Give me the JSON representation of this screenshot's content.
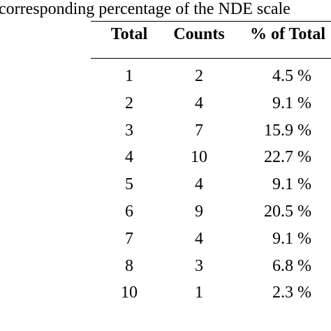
{
  "caption": "corresponding percentage of the NDE scale",
  "table": {
    "headers": [
      "Total",
      "Counts",
      "% of Total"
    ],
    "rows": [
      {
        "total": "1",
        "counts": "2",
        "percent": "4.5 %"
      },
      {
        "total": "2",
        "counts": "4",
        "percent": "9.1 %"
      },
      {
        "total": "3",
        "counts": "7",
        "percent": "15.9 %"
      },
      {
        "total": "4",
        "counts": "10",
        "percent": "22.7 %"
      },
      {
        "total": "5",
        "counts": "4",
        "percent": "9.1 %"
      },
      {
        "total": "6",
        "counts": "9",
        "percent": "20.5 %"
      },
      {
        "total": "7",
        "counts": "4",
        "percent": "9.1 %"
      },
      {
        "total": "8",
        "counts": "3",
        "percent": "6.8 %"
      },
      {
        "total": "10",
        "counts": "1",
        "percent": "2.3 %"
      }
    ]
  }
}
